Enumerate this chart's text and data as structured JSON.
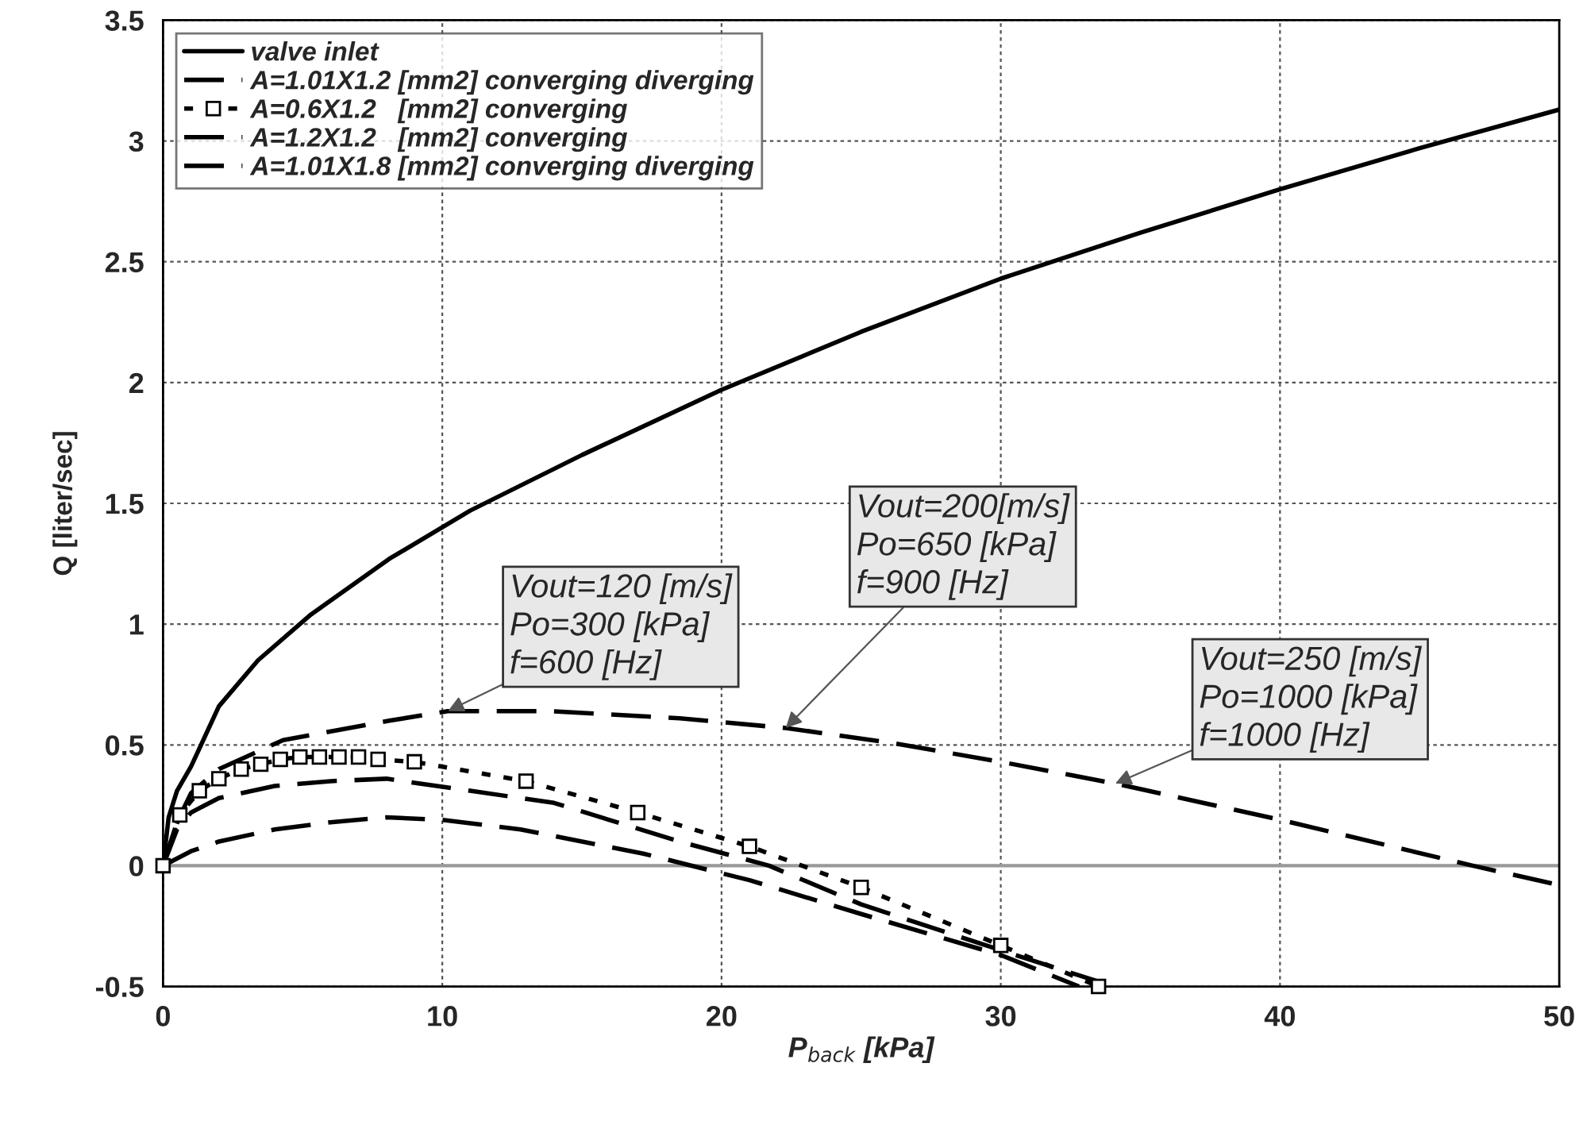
{
  "chart_data": {
    "type": "line",
    "xlabel": "P$_{back}$ [kPa]",
    "ylabel": "Q [liter/sec]",
    "xlim": [
      0,
      50
    ],
    "xticks": [
      0,
      10,
      20,
      30,
      40,
      50
    ],
    "ylim": [
      -0.5,
      3.5
    ],
    "yticks": [
      -0.5,
      0,
      0.5,
      1,
      1.5,
      2,
      2.5,
      3,
      3.5
    ],
    "grid": true,
    "legend": "top left",
    "ref_lines": [
      {
        "axis": "y",
        "value": 0,
        "color": "#999999"
      }
    ],
    "series": [
      {
        "name": "valve inlet",
        "color": "#000000",
        "line_style": "solid",
        "marker": "none",
        "x": [
          0,
          0.2,
          0.5,
          1,
          2,
          3.4,
          5.3,
          8.1,
          11,
          15,
          20,
          25,
          30,
          35,
          40,
          45,
          50
        ],
        "values": [
          0,
          0.2,
          0.31,
          0.41,
          0.66,
          0.85,
          1.04,
          1.27,
          1.47,
          1.7,
          1.97,
          2.21,
          2.43,
          2.62,
          2.8,
          2.97,
          3.13
        ]
      },
      {
        "name": "A=1.01X1.2 [mm2] converging diverging",
        "color": "#000000",
        "line_style": "dashed",
        "marker": "none",
        "x": [
          0,
          0.5,
          1,
          2,
          4.3,
          8.1,
          10.2,
          13.8,
          18.5,
          22.3,
          26,
          30,
          34.1,
          40,
          44,
          46.9,
          50
        ],
        "values": [
          0,
          0.18,
          0.3,
          0.4,
          0.52,
          0.6,
          0.64,
          0.64,
          0.61,
          0.57,
          0.51,
          0.43,
          0.34,
          0.19,
          0.08,
          0,
          -0.08
        ]
      },
      {
        "name": "A=0.6X1.2   [mm2] converging",
        "color": "#000000",
        "line_style": "dotted",
        "marker": "square",
        "x": [
          0,
          0.6,
          1.3,
          2,
          2.8,
          3.5,
          4.2,
          4.9,
          5.6,
          6.3,
          7,
          7.7,
          9,
          13,
          17,
          21,
          25,
          30,
          33.5
        ],
        "values": [
          0,
          0.21,
          0.31,
          0.36,
          0.4,
          0.42,
          0.44,
          0.45,
          0.45,
          0.45,
          0.45,
          0.44,
          0.43,
          0.35,
          0.22,
          0.08,
          -0.09,
          -0.33,
          -0.5
        ]
      },
      {
        "name": "A=1.2X1.2   [mm2] converging",
        "color": "#000000",
        "line_style": "dashed",
        "marker": "none",
        "x": [
          0,
          0.5,
          1,
          2,
          4,
          6,
          8,
          11,
          14,
          18.5,
          21.7,
          25,
          30,
          33.5
        ],
        "values": [
          0,
          0.15,
          0.22,
          0.28,
          0.33,
          0.35,
          0.36,
          0.31,
          0.26,
          0.1,
          0,
          -0.16,
          -0.35,
          -0.48
        ]
      },
      {
        "name": "A=1.01X1.8 [mm2] converging diverging",
        "color": "#000000",
        "line_style": "dashed",
        "marker": "none",
        "x": [
          0,
          1,
          2,
          4,
          6,
          8,
          10,
          12.8,
          17.2,
          21,
          25,
          30,
          32.8
        ],
        "values": [
          0,
          0.06,
          0.1,
          0.15,
          0.18,
          0.2,
          0.19,
          0.15,
          0.05,
          -0.06,
          -0.2,
          -0.37,
          -0.5
        ]
      }
    ],
    "annotations": [
      {
        "text": "Vout=120 [m/s]\nPo=300 [kPa]\nf=600 [Hz]",
        "x": 10.2,
        "y": 0.64
      },
      {
        "text": "Vout=200[m/s]\nPo=650 [kPa]\nf=900 [Hz]",
        "x": 22.3,
        "y": 0.57
      },
      {
        "text": "Vout=250 [m/s]\nPo=1000 [kPa]\nf=1000 [Hz]",
        "x": 34.1,
        "y": 0.34
      }
    ]
  }
}
